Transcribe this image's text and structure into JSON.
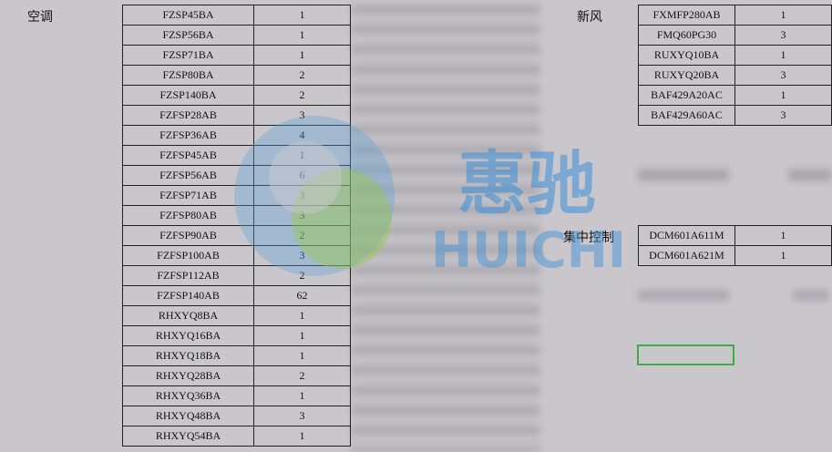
{
  "sections": [
    {
      "label": "空调",
      "rows": [
        [
          "FZSP45BA",
          "1"
        ],
        [
          "FZSP56BA",
          "1"
        ],
        [
          "FZSP71BA",
          "1"
        ],
        [
          "FZSP80BA",
          "2"
        ],
        [
          "FZSP140BA",
          "2"
        ],
        [
          "FZFSP28AB",
          "3"
        ],
        [
          "FZFSP36AB",
          "4"
        ],
        [
          "FZFSP45AB",
          "1"
        ],
        [
          "FZFSP56AB",
          "6"
        ],
        [
          "FZFSP71AB",
          "3"
        ],
        [
          "FZFSP80AB",
          "3"
        ],
        [
          "FZFSP90AB",
          "2"
        ],
        [
          "FZFSP100AB",
          "3"
        ],
        [
          "FZFSP112AB",
          "2"
        ],
        [
          "FZFSP140AB",
          "62"
        ],
        [
          "RHXYQ8BA",
          "1"
        ],
        [
          "RHXYQ16BA",
          "1"
        ],
        [
          "RHXYQ18BA",
          "1"
        ],
        [
          "RHXYQ28BA",
          "2"
        ],
        [
          "RHXYQ36BA",
          "1"
        ],
        [
          "RHXYQ48BA",
          "3"
        ],
        [
          "RHXYQ54BA",
          "1"
        ]
      ]
    },
    {
      "label": "新风",
      "rows": [
        [
          "FXMFP280AB",
          "1"
        ],
        [
          "FMQ60PG30",
          "3"
        ],
        [
          "RUXYQ10BA",
          "1"
        ],
        [
          "RUXYQ20BA",
          "3"
        ],
        [
          "BAF429A20AC",
          "1"
        ],
        [
          "BAF429A60AC",
          "3"
        ]
      ]
    },
    {
      "label": "集中控制",
      "rows": [
        [
          "DCM601A611M",
          "1"
        ],
        [
          "DCM601A621M",
          "1"
        ]
      ]
    }
  ],
  "watermark": {
    "title": "惠驰",
    "subtitle": "HUICHI"
  }
}
